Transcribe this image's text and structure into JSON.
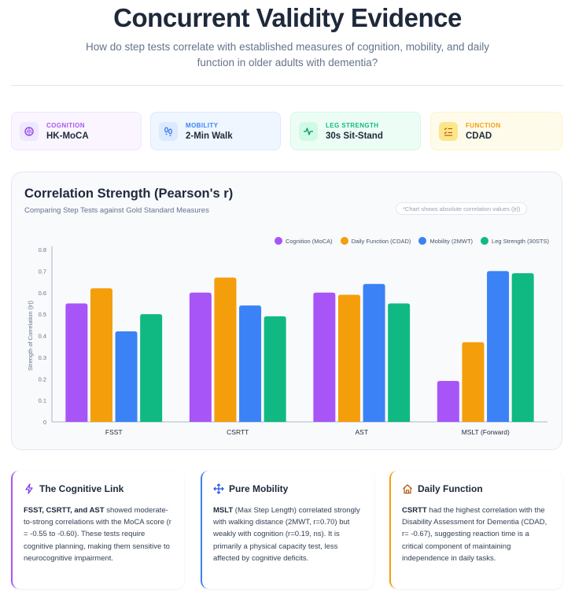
{
  "header": {
    "title": "Concurrent Validity Evidence",
    "subtitle": "How do step tests correlate with established measures of cognition, mobility, and daily function in older adults with dementia?"
  },
  "categories": [
    {
      "label": "COGNITION",
      "value": "HK-MoCA",
      "icon": "brain-icon",
      "color": "#a855f7"
    },
    {
      "label": "MOBILITY",
      "value": "2-Min Walk",
      "icon": "footprints-icon",
      "color": "#3b82f6"
    },
    {
      "label": "LEG STRENGTH",
      "value": "30s Sit-Stand",
      "icon": "activity-icon",
      "color": "#10b981"
    },
    {
      "label": "FUNCTION",
      "value": "CDAD",
      "icon": "checklist-icon",
      "color": "#f59e0b"
    }
  ],
  "chart_header": {
    "title": "Correlation Strength (Pearson's r)",
    "subtitle": "Comparing Step Tests against Gold Standard Measures",
    "note": "*Chart shows absolute correlation values (|r|)"
  },
  "chart_data": {
    "type": "bar",
    "categories": [
      "FSST",
      "CSRTT",
      "AST",
      "MSLT (Forward)"
    ],
    "series": [
      {
        "name": "Cognition (MoCA)",
        "color": "#a855f7",
        "values": [
          0.55,
          0.6,
          0.6,
          0.19
        ]
      },
      {
        "name": "Daily Function (CDAD)",
        "color": "#f59e0b",
        "values": [
          0.62,
          0.67,
          0.59,
          0.37
        ]
      },
      {
        "name": "Mobility (2MWT)",
        "color": "#3b82f6",
        "values": [
          0.42,
          0.54,
          0.64,
          0.7
        ]
      },
      {
        "name": "Leg Strength (30STS)",
        "color": "#10b981",
        "values": [
          0.5,
          0.49,
          0.55,
          0.69
        ]
      }
    ],
    "ylabel": "Strength of Correlation (|r|)",
    "xlabel": "",
    "ylim": [
      0,
      0.8
    ],
    "yticks": [
      "0",
      "0.1",
      "0.2",
      "0.3",
      "0.4",
      "0.5",
      "0.6",
      "0.7",
      "0.8"
    ],
    "grid": false,
    "legend": "top-right"
  },
  "insights": [
    {
      "title": "The Cognitive Link",
      "icon": "brain-circuit-icon",
      "color": "#a855f7",
      "bold": "FSST, CSRTT, and AST",
      "text": " showed moderate-to-strong correlations with the MoCA score (r = -0.55 to -0.60). These tests require cognitive planning, making them sensitive to neurocognitive impairment."
    },
    {
      "title": "Pure Mobility",
      "icon": "move-icon",
      "color": "#3b82f6",
      "bold": "MSLT",
      "text": " (Max Step Length) correlated strongly with walking distance (2MWT, r=0.70) but weakly with cognition (r=0.19, ns). It is primarily a physical capacity test, less affected by cognitive deficits."
    },
    {
      "title": "Daily Function",
      "icon": "home-icon",
      "color": "#f59e0b",
      "bold": "CSRTT",
      "text": " had the highest correlation with the Disability Assessment for Dementia (CDAD, r= -0.67), suggesting reaction time is a critical component of maintaining independence in daily tasks."
    }
  ]
}
